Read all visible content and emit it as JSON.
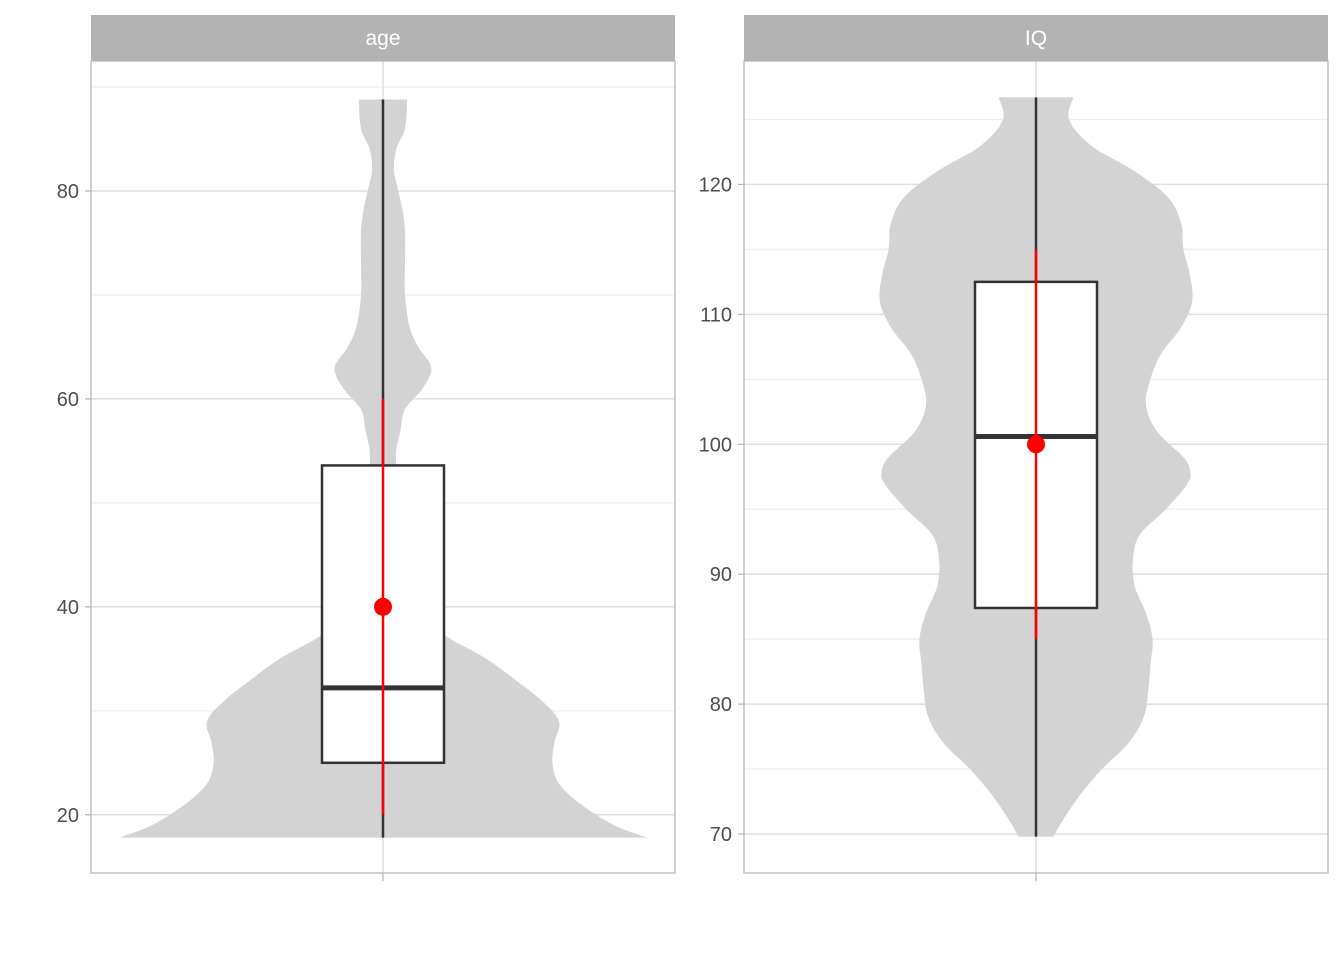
{
  "chart_data": [
    {
      "type": "violin",
      "facet": "age",
      "ylim": [
        14.4,
        92.5
      ],
      "y_ticks": [
        20,
        40,
        60,
        80
      ],
      "y_tick_labels": [
        "20",
        "40",
        "60",
        "80"
      ],
      "grid": true,
      "violin": {
        "min": 17.8,
        "max": 88.8,
        "density": [
          [
            17.8,
            1.2
          ],
          [
            19,
            1.05
          ],
          [
            21,
            0.9
          ],
          [
            23,
            0.8
          ],
          [
            25,
            0.77
          ],
          [
            27,
            0.78
          ],
          [
            29,
            0.8
          ],
          [
            31,
            0.72
          ],
          [
            33,
            0.6
          ],
          [
            35,
            0.47
          ],
          [
            37,
            0.3
          ],
          [
            39,
            0.17
          ],
          [
            41,
            0.07
          ],
          [
            43,
            0.06
          ],
          [
            46,
            0.06
          ],
          [
            50,
            0.06
          ],
          [
            53,
            0.06
          ],
          [
            55,
            0.06
          ],
          [
            57,
            0.08
          ],
          [
            59,
            0.1
          ],
          [
            61,
            0.18
          ],
          [
            63,
            0.22
          ],
          [
            65,
            0.16
          ],
          [
            67,
            0.12
          ],
          [
            70,
            0.1
          ],
          [
            73,
            0.1
          ],
          [
            76,
            0.1
          ],
          [
            78,
            0.09
          ],
          [
            80,
            0.07
          ],
          [
            82,
            0.05
          ],
          [
            84,
            0.06
          ],
          [
            86,
            0.1
          ],
          [
            88.8,
            0.11
          ]
        ]
      },
      "box": {
        "whisker_low": 17.8,
        "q1": 25,
        "median": 32.2,
        "q3": 53.6,
        "whisker_high": 88.8
      },
      "mean": 40,
      "error_bar": [
        20,
        60
      ]
    },
    {
      "type": "violin",
      "facet": "IQ",
      "ylim": [
        67,
        129.5
      ],
      "y_ticks": [
        70,
        80,
        90,
        100,
        110,
        120
      ],
      "y_tick_labels": [
        "70",
        "80",
        "90",
        "100",
        "110",
        "120"
      ],
      "grid": true,
      "violin": {
        "min": 69.8,
        "max": 126.7,
        "density": [
          [
            69.8,
            0.08
          ],
          [
            71,
            0.12
          ],
          [
            73,
            0.2
          ],
          [
            75,
            0.3
          ],
          [
            77,
            0.42
          ],
          [
            79,
            0.49
          ],
          [
            81,
            0.51
          ],
          [
            83,
            0.52
          ],
          [
            85,
            0.53
          ],
          [
            87,
            0.5
          ],
          [
            89,
            0.45
          ],
          [
            91,
            0.44
          ],
          [
            93,
            0.47
          ],
          [
            95,
            0.59
          ],
          [
            97,
            0.69
          ],
          [
            98,
            0.7
          ],
          [
            99,
            0.67
          ],
          [
            101,
            0.55
          ],
          [
            103,
            0.5
          ],
          [
            105,
            0.52
          ],
          [
            107,
            0.57
          ],
          [
            109,
            0.66
          ],
          [
            111,
            0.71
          ],
          [
            113,
            0.7
          ],
          [
            115,
            0.67
          ],
          [
            117,
            0.66
          ],
          [
            119,
            0.6
          ],
          [
            121,
            0.45
          ],
          [
            123,
            0.25
          ],
          [
            125,
            0.15
          ],
          [
            126.7,
            0.17
          ]
        ]
      },
      "box": {
        "whisker_low": 69.8,
        "q1": 87.4,
        "median": 100.6,
        "q3": 112.5,
        "whisker_high": 126.7
      },
      "mean": 100,
      "error_bar": [
        85,
        115
      ]
    }
  ],
  "colors": {
    "violin_fill": "#d3d3d3",
    "box_line": "#333333",
    "mean_point": "#ff0000",
    "error_bar": "#ff0000",
    "strip_bg": "#b3b3b3",
    "panel_border": "#b3b3b3",
    "grid_major": "#dedede",
    "grid_minor": "#eeeeee"
  }
}
